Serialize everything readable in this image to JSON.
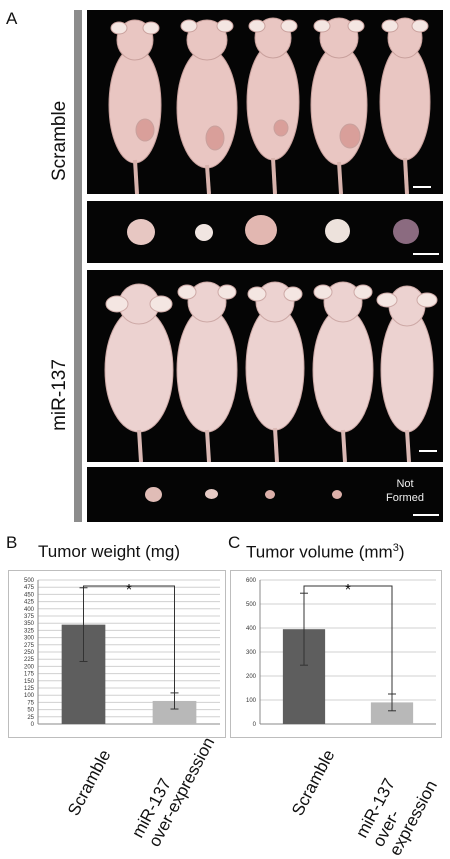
{
  "panel_a": {
    "letter": "A",
    "groups": [
      {
        "label": "Scramble",
        "tumor_note": ""
      },
      {
        "label": "miR-137",
        "tumor_note": "Not\nFormed"
      }
    ]
  },
  "panel_b": {
    "letter": "B"
  },
  "panel_c": {
    "letter": "C"
  },
  "chart_data": [
    {
      "type": "bar",
      "title": "Tumor weight (mg)",
      "categories": [
        "Scramble",
        "miR-137 over-expression"
      ],
      "values": [
        345,
        80
      ],
      "errors": [
        128,
        28
      ],
      "ylim": [
        0,
        500
      ],
      "yticks": [
        0,
        25,
        50,
        75,
        100,
        125,
        150,
        175,
        200,
        225,
        250,
        275,
        300,
        325,
        350,
        375,
        400,
        425,
        450,
        475,
        500
      ],
      "significance": "*",
      "bar_colors": [
        "#5e5e5e",
        "#b8b8b8"
      ]
    },
    {
      "type": "bar",
      "title": "Tumor volume (mm",
      "title_superscript": "3",
      "title_suffix": ")",
      "categories": [
        "Scramble",
        "miR-137 over-expression"
      ],
      "values": [
        395,
        90
      ],
      "errors": [
        150,
        35
      ],
      "ylim": [
        0,
        600
      ],
      "yticks": [
        0,
        100,
        200,
        300,
        400,
        500,
        600
      ],
      "significance": "*",
      "bar_colors": [
        "#5e5e5e",
        "#b8b8b8"
      ]
    }
  ]
}
